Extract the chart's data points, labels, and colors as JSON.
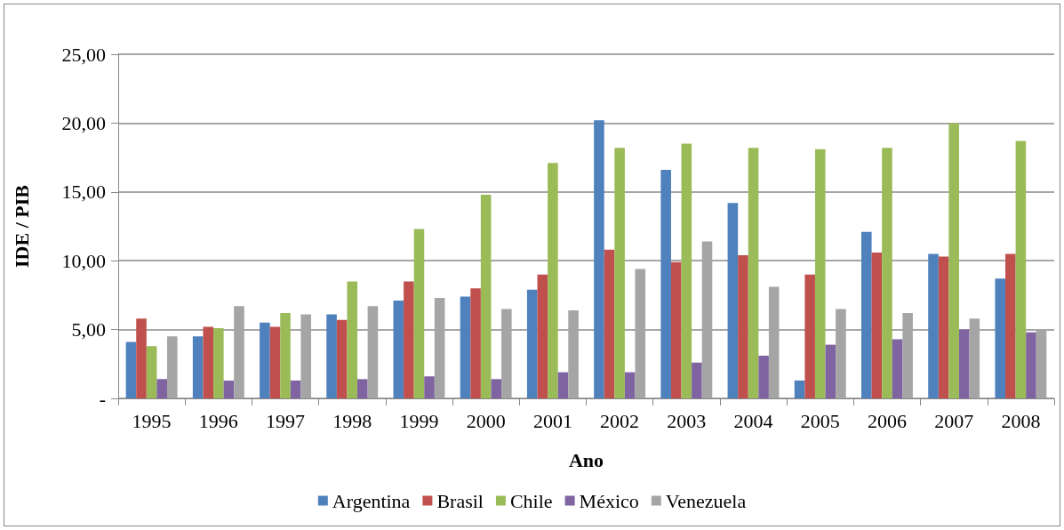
{
  "chart_data": {
    "type": "bar",
    "xlabel": "Ano",
    "ylabel": "IDE / PIB",
    "categories": [
      "1995",
      "1996",
      "1997",
      "1998",
      "1999",
      "2000",
      "2001",
      "2002",
      "2003",
      "2004",
      "2005",
      "2006",
      "2007",
      "2008"
    ],
    "series": [
      {
        "name": "Argentina",
        "color": "#4f81bd",
        "values": [
          4.1,
          4.5,
          5.5,
          6.1,
          7.1,
          7.4,
          7.9,
          20.2,
          16.6,
          14.2,
          1.3,
          12.1,
          10.5,
          8.7
        ]
      },
      {
        "name": "Brasil",
        "color": "#c0504d",
        "values": [
          5.8,
          5.2,
          5.2,
          5.7,
          8.5,
          8.0,
          9.0,
          10.8,
          9.9,
          10.4,
          9.0,
          10.6,
          10.3,
          10.5
        ]
      },
      {
        "name": "Chile",
        "color": "#9bbb59",
        "values": [
          3.8,
          5.1,
          6.2,
          8.5,
          12.3,
          14.8,
          17.1,
          18.2,
          18.5,
          18.2,
          18.1,
          18.2,
          20.0,
          18.7
        ]
      },
      {
        "name": "México",
        "color": "#8064a2",
        "values": [
          1.4,
          1.3,
          1.3,
          1.4,
          1.6,
          1.4,
          1.9,
          1.9,
          2.6,
          3.1,
          3.9,
          4.3,
          5.0,
          4.8
        ]
      },
      {
        "name": "Venezuela",
        "color": "#a5a5a5",
        "values": [
          4.5,
          6.7,
          6.1,
          6.7,
          7.3,
          6.5,
          6.4,
          9.4,
          11.4,
          8.1,
          6.5,
          6.2,
          5.8,
          5.0
        ]
      }
    ],
    "ylim": [
      0,
      25
    ],
    "yticks": [
      {
        "value": 0,
        "label": "-"
      },
      {
        "value": 5,
        "label": "5,00"
      },
      {
        "value": 10,
        "label": "10,00"
      },
      {
        "value": 15,
        "label": "15,00"
      },
      {
        "value": 20,
        "label": "20,00"
      },
      {
        "value": 25,
        "label": "25,00"
      }
    ],
    "grid": "y",
    "legend": "bottom"
  }
}
